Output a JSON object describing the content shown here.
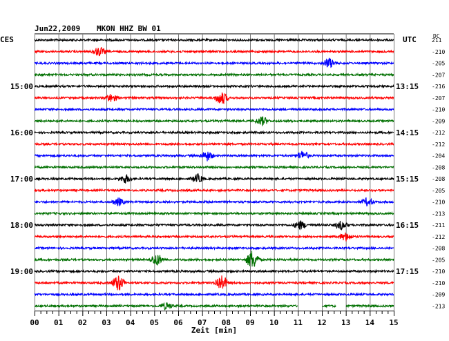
{
  "header": {
    "date": "Jun22,2009",
    "station": "MKON HHZ BW 01",
    "left_zone": "CES",
    "right_zone": "UTC",
    "dc_label": "DC"
  },
  "chart_data": {
    "type": "line",
    "title": "Jun22,2009   MKON HHZ BW 01",
    "xlabel": "Zeit [min]",
    "xlim": [
      0,
      15
    ],
    "x_ticks": [
      "00",
      "01",
      "02",
      "03",
      "04",
      "05",
      "06",
      "07",
      "08",
      "09",
      "10",
      "11",
      "12",
      "13",
      "14",
      "15"
    ],
    "grid": true,
    "row_count": 24,
    "row_colors": [
      "#000000",
      "#ff0000",
      "#0000ff",
      "#007000"
    ],
    "left_hour_labels": [
      {
        "row": 4,
        "text": "15:00"
      },
      {
        "row": 8,
        "text": "16:00"
      },
      {
        "row": 12,
        "text": "17:00"
      },
      {
        "row": 16,
        "text": "18:00"
      },
      {
        "row": 20,
        "text": "19:00"
      }
    ],
    "right_hour_labels": [
      {
        "row": 4,
        "text": "13:15"
      },
      {
        "row": 8,
        "text": "14:15"
      },
      {
        "row": 12,
        "text": "15:15"
      },
      {
        "row": 16,
        "text": "16:15"
      },
      {
        "row": 20,
        "text": "17:15"
      }
    ],
    "dc_offsets": [
      "211",
      "-210",
      "-205",
      "-207",
      "-216",
      "-207",
      "-210",
      "-209",
      "-212",
      "-212",
      "-204",
      "-208",
      "-208",
      "-205",
      "-210",
      "-213",
      "-211",
      "-212",
      "-208",
      "-205",
      "-210",
      "-210",
      "-209",
      "-213"
    ],
    "events": [
      {
        "row": 1,
        "minute": 2.7,
        "amp": 1.6
      },
      {
        "row": 2,
        "minute": 12.3,
        "amp": 1.8
      },
      {
        "row": 5,
        "minute": 3.2,
        "amp": 1.4
      },
      {
        "row": 5,
        "minute": 7.8,
        "amp": 2.4
      },
      {
        "row": 7,
        "minute": 9.5,
        "amp": 1.6
      },
      {
        "row": 10,
        "minute": 7.2,
        "amp": 1.8
      },
      {
        "row": 10,
        "minute": 11.2,
        "amp": 1.7
      },
      {
        "row": 12,
        "minute": 3.8,
        "amp": 1.5
      },
      {
        "row": 12,
        "minute": 6.8,
        "amp": 1.5
      },
      {
        "row": 14,
        "minute": 3.5,
        "amp": 1.4
      },
      {
        "row": 14,
        "minute": 13.9,
        "amp": 1.4
      },
      {
        "row": 16,
        "minute": 11.1,
        "amp": 1.5
      },
      {
        "row": 16,
        "minute": 12.8,
        "amp": 1.5
      },
      {
        "row": 17,
        "minute": 13.0,
        "amp": 1.5
      },
      {
        "row": 19,
        "minute": 5.1,
        "amp": 2.2
      },
      {
        "row": 19,
        "minute": 9.1,
        "amp": 3.5
      },
      {
        "row": 21,
        "minute": 3.5,
        "amp": 3.0
      },
      {
        "row": 21,
        "minute": 7.8,
        "amp": 3.0
      },
      {
        "row": 23,
        "minute": 5.5,
        "amp": 1.2
      }
    ],
    "gaps": [
      {
        "row": 23,
        "from": 11.0,
        "to": 12.0
      },
      {
        "row": 23,
        "from": 12.6,
        "to": 13.0
      }
    ]
  }
}
